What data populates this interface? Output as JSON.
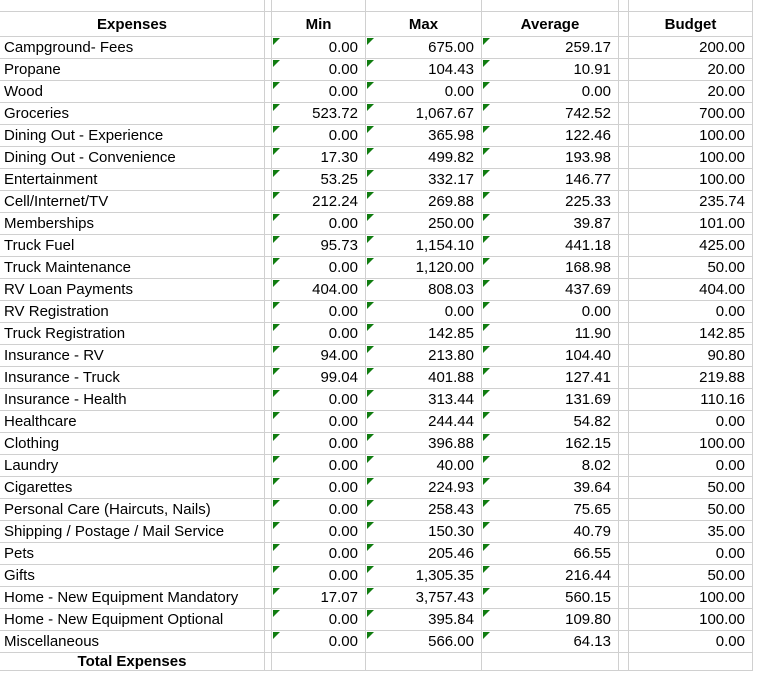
{
  "sheet": {
    "colors": {
      "gridline": "#d0d0d0",
      "error_indicator_green": "#107C10"
    },
    "header": {
      "expenses": "Expenses",
      "min": "Min",
      "max": "Max",
      "average": "Average",
      "budget": "Budget"
    },
    "total_row": {
      "label": "Total Expenses",
      "min": "",
      "max": "",
      "average": "",
      "budget": ""
    },
    "rows": [
      {
        "label": "Campground- Fees",
        "min": "0.00",
        "max": "675.00",
        "average": "259.17",
        "budget": "200.00"
      },
      {
        "label": "Propane",
        "min": "0.00",
        "max": "104.43",
        "average": "10.91",
        "budget": "20.00"
      },
      {
        "label": "Wood",
        "min": "0.00",
        "max": "0.00",
        "average": "0.00",
        "budget": "20.00"
      },
      {
        "label": "Groceries",
        "min": "523.72",
        "max": "1,067.67",
        "average": "742.52",
        "budget": "700.00"
      },
      {
        "label": "Dining Out - Experience",
        "min": "0.00",
        "max": "365.98",
        "average": "122.46",
        "budget": "100.00"
      },
      {
        "label": "Dining Out - Convenience",
        "min": "17.30",
        "max": "499.82",
        "average": "193.98",
        "budget": "100.00"
      },
      {
        "label": "Entertainment",
        "min": "53.25",
        "max": "332.17",
        "average": "146.77",
        "budget": "100.00"
      },
      {
        "label": "Cell/Internet/TV",
        "min": "212.24",
        "max": "269.88",
        "average": "225.33",
        "budget": "235.74"
      },
      {
        "label": "Memberships",
        "min": "0.00",
        "max": "250.00",
        "average": "39.87",
        "budget": "101.00"
      },
      {
        "label": "Truck Fuel",
        "min": "95.73",
        "max": "1,154.10",
        "average": "441.18",
        "budget": "425.00"
      },
      {
        "label": "Truck Maintenance",
        "min": "0.00",
        "max": "1,120.00",
        "average": "168.98",
        "budget": "50.00"
      },
      {
        "label": "RV Loan Payments",
        "min": "404.00",
        "max": "808.03",
        "average": "437.69",
        "budget": "404.00"
      },
      {
        "label": "RV Registration",
        "min": "0.00",
        "max": "0.00",
        "average": "0.00",
        "budget": "0.00"
      },
      {
        "label": "Truck Registration",
        "min": "0.00",
        "max": "142.85",
        "average": "11.90",
        "budget": "142.85"
      },
      {
        "label": "Insurance - RV",
        "min": "94.00",
        "max": "213.80",
        "average": "104.40",
        "budget": "90.80"
      },
      {
        "label": "Insurance - Truck",
        "min": "99.04",
        "max": "401.88",
        "average": "127.41",
        "budget": "219.88"
      },
      {
        "label": "Insurance - Health",
        "min": "0.00",
        "max": "313.44",
        "average": "131.69",
        "budget": "110.16"
      },
      {
        "label": "Healthcare",
        "min": "0.00",
        "max": "244.44",
        "average": "54.82",
        "budget": "0.00"
      },
      {
        "label": "Clothing",
        "min": "0.00",
        "max": "396.88",
        "average": "162.15",
        "budget": "100.00"
      },
      {
        "label": "Laundry",
        "min": "0.00",
        "max": "40.00",
        "average": "8.02",
        "budget": "0.00"
      },
      {
        "label": "Cigarettes",
        "min": "0.00",
        "max": "224.93",
        "average": "39.64",
        "budget": "50.00"
      },
      {
        "label": "Personal Care (Haircuts, Nails)",
        "min": "0.00",
        "max": "258.43",
        "average": "75.65",
        "budget": "50.00"
      },
      {
        "label": "Shipping / Postage / Mail Service",
        "min": "0.00",
        "max": "150.30",
        "average": "40.79",
        "budget": "35.00"
      },
      {
        "label": "Pets",
        "min": "0.00",
        "max": "205.46",
        "average": "66.55",
        "budget": "0.00"
      },
      {
        "label": "Gifts",
        "min": "0.00",
        "max": "1,305.35",
        "average": "216.44",
        "budget": "50.00"
      },
      {
        "label": "Home - New Equipment Mandatory",
        "min": "17.07",
        "max": "3,757.43",
        "average": "560.15",
        "budget": "100.00"
      },
      {
        "label": "Home - New Equipment Optional",
        "min": "0.00",
        "max": "395.84",
        "average": "109.80",
        "budget": "100.00"
      },
      {
        "label": "Miscellaneous",
        "min": "0.00",
        "max": "566.00",
        "average": "64.13",
        "budget": "0.00"
      }
    ]
  }
}
